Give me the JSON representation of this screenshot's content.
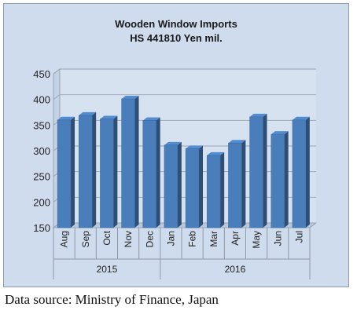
{
  "chart_data": {
    "type": "bar",
    "title_lines": [
      "Wooden Window Imports",
      "HS 441810 Yen mil."
    ],
    "categories": [
      "Aug",
      "Sep",
      "Oct",
      "Nov",
      "Dec",
      "Jan",
      "Feb",
      "Mar",
      "Apr",
      "May",
      "Jun",
      "Jul"
    ],
    "groups": [
      {
        "label": "2015",
        "categories": [
          "Aug",
          "Sep",
          "Oct",
          "Nov",
          "Dec"
        ]
      },
      {
        "label": "2016",
        "categories": [
          "Jan",
          "Feb",
          "Mar",
          "Apr",
          "May",
          "Jun",
          "Jul"
        ]
      }
    ],
    "values": [
      360,
      369,
      362,
      401,
      359,
      311,
      304,
      291,
      315,
      366,
      332,
      360
    ],
    "yticks": [
      150,
      200,
      250,
      300,
      350,
      400,
      450
    ],
    "ylim": [
      150,
      450
    ],
    "grid": true,
    "bar_color": "#4a7ebb",
    "background_color": "#cfdced"
  },
  "source_note": "Data source: Ministry of Finance, Japan"
}
